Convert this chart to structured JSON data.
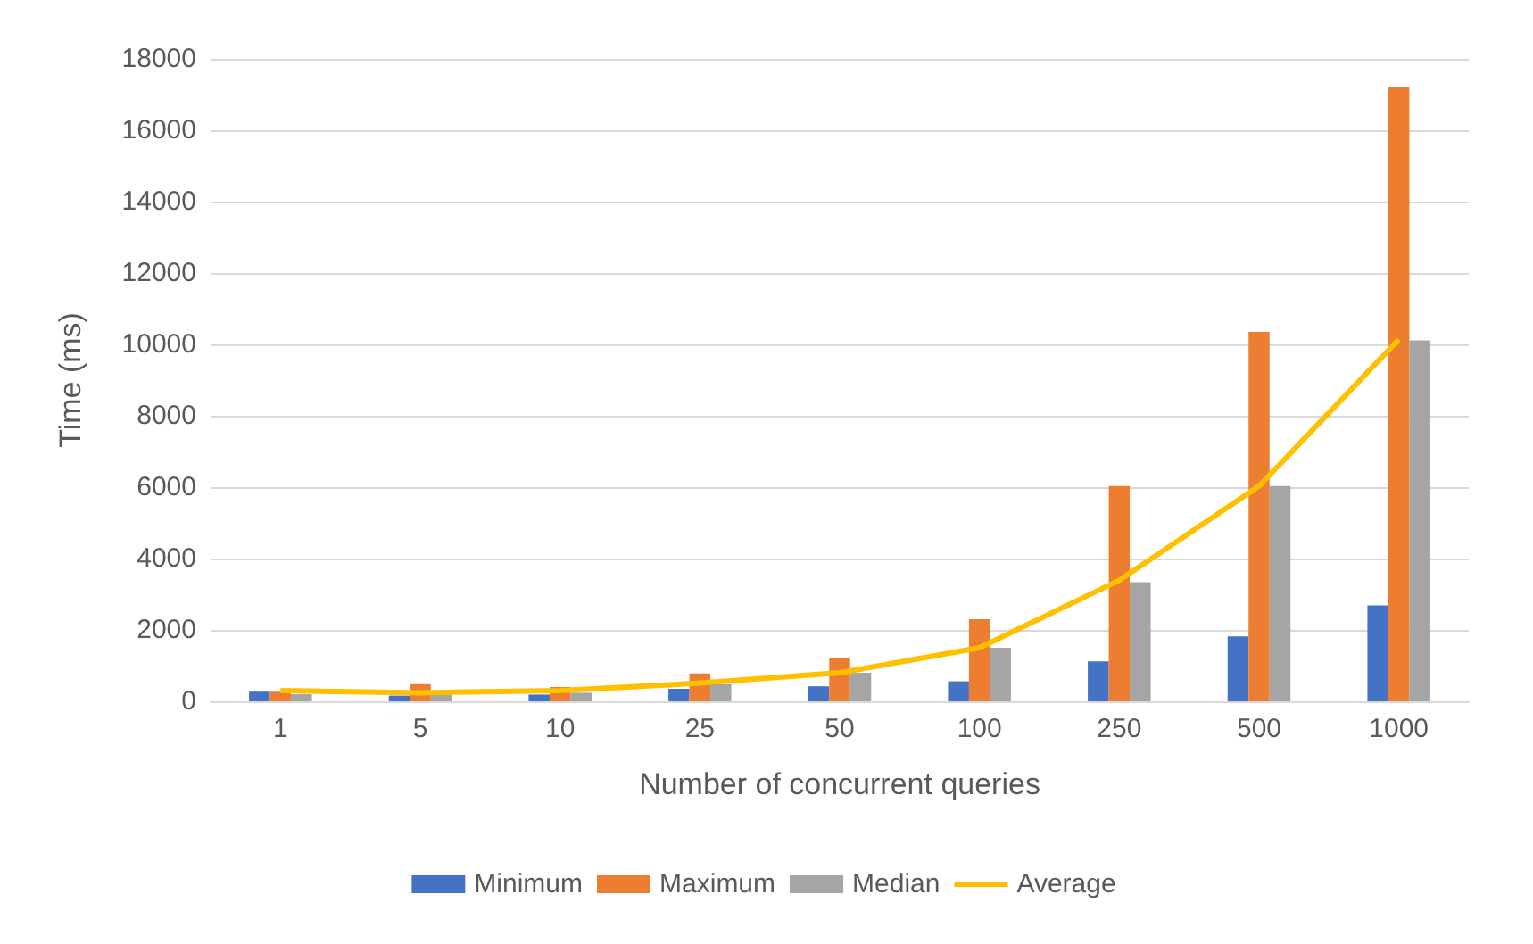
{
  "chart_data": {
    "type": "bar",
    "xlabel": "Number of concurrent queries",
    "ylabel": "Time (ms)",
    "categories": [
      "1",
      "5",
      "10",
      "25",
      "50",
      "100",
      "250",
      "500",
      "1000"
    ],
    "series": [
      {
        "name": "Minimum",
        "color": "#4472c4",
        "values": [
          270,
          160,
          190,
          350,
          420,
          560,
          1120,
          1820,
          2690
        ]
      },
      {
        "name": "Maximum",
        "color": "#ed7d31",
        "values": [
          270,
          480,
          400,
          780,
          1220,
          2300,
          6030,
          10350,
          17200
        ]
      },
      {
        "name": "Median",
        "color": "#a5a5a5",
        "values": [
          200,
          190,
          240,
          480,
          800,
          1500,
          3340,
          6030,
          10110
        ]
      },
      {
        "name": "Average",
        "type": "line",
        "color": "#ffc000",
        "values": [
          300,
          240,
          300,
          510,
          800,
          1500,
          3390,
          6030,
          10140
        ]
      }
    ],
    "ylim": [
      0,
      18000
    ],
    "yticks": [
      0,
      2000,
      4000,
      6000,
      8000,
      10000,
      12000,
      14000,
      16000,
      18000
    ],
    "grid": "y",
    "legend": "bottom",
    "marker": "none"
  }
}
